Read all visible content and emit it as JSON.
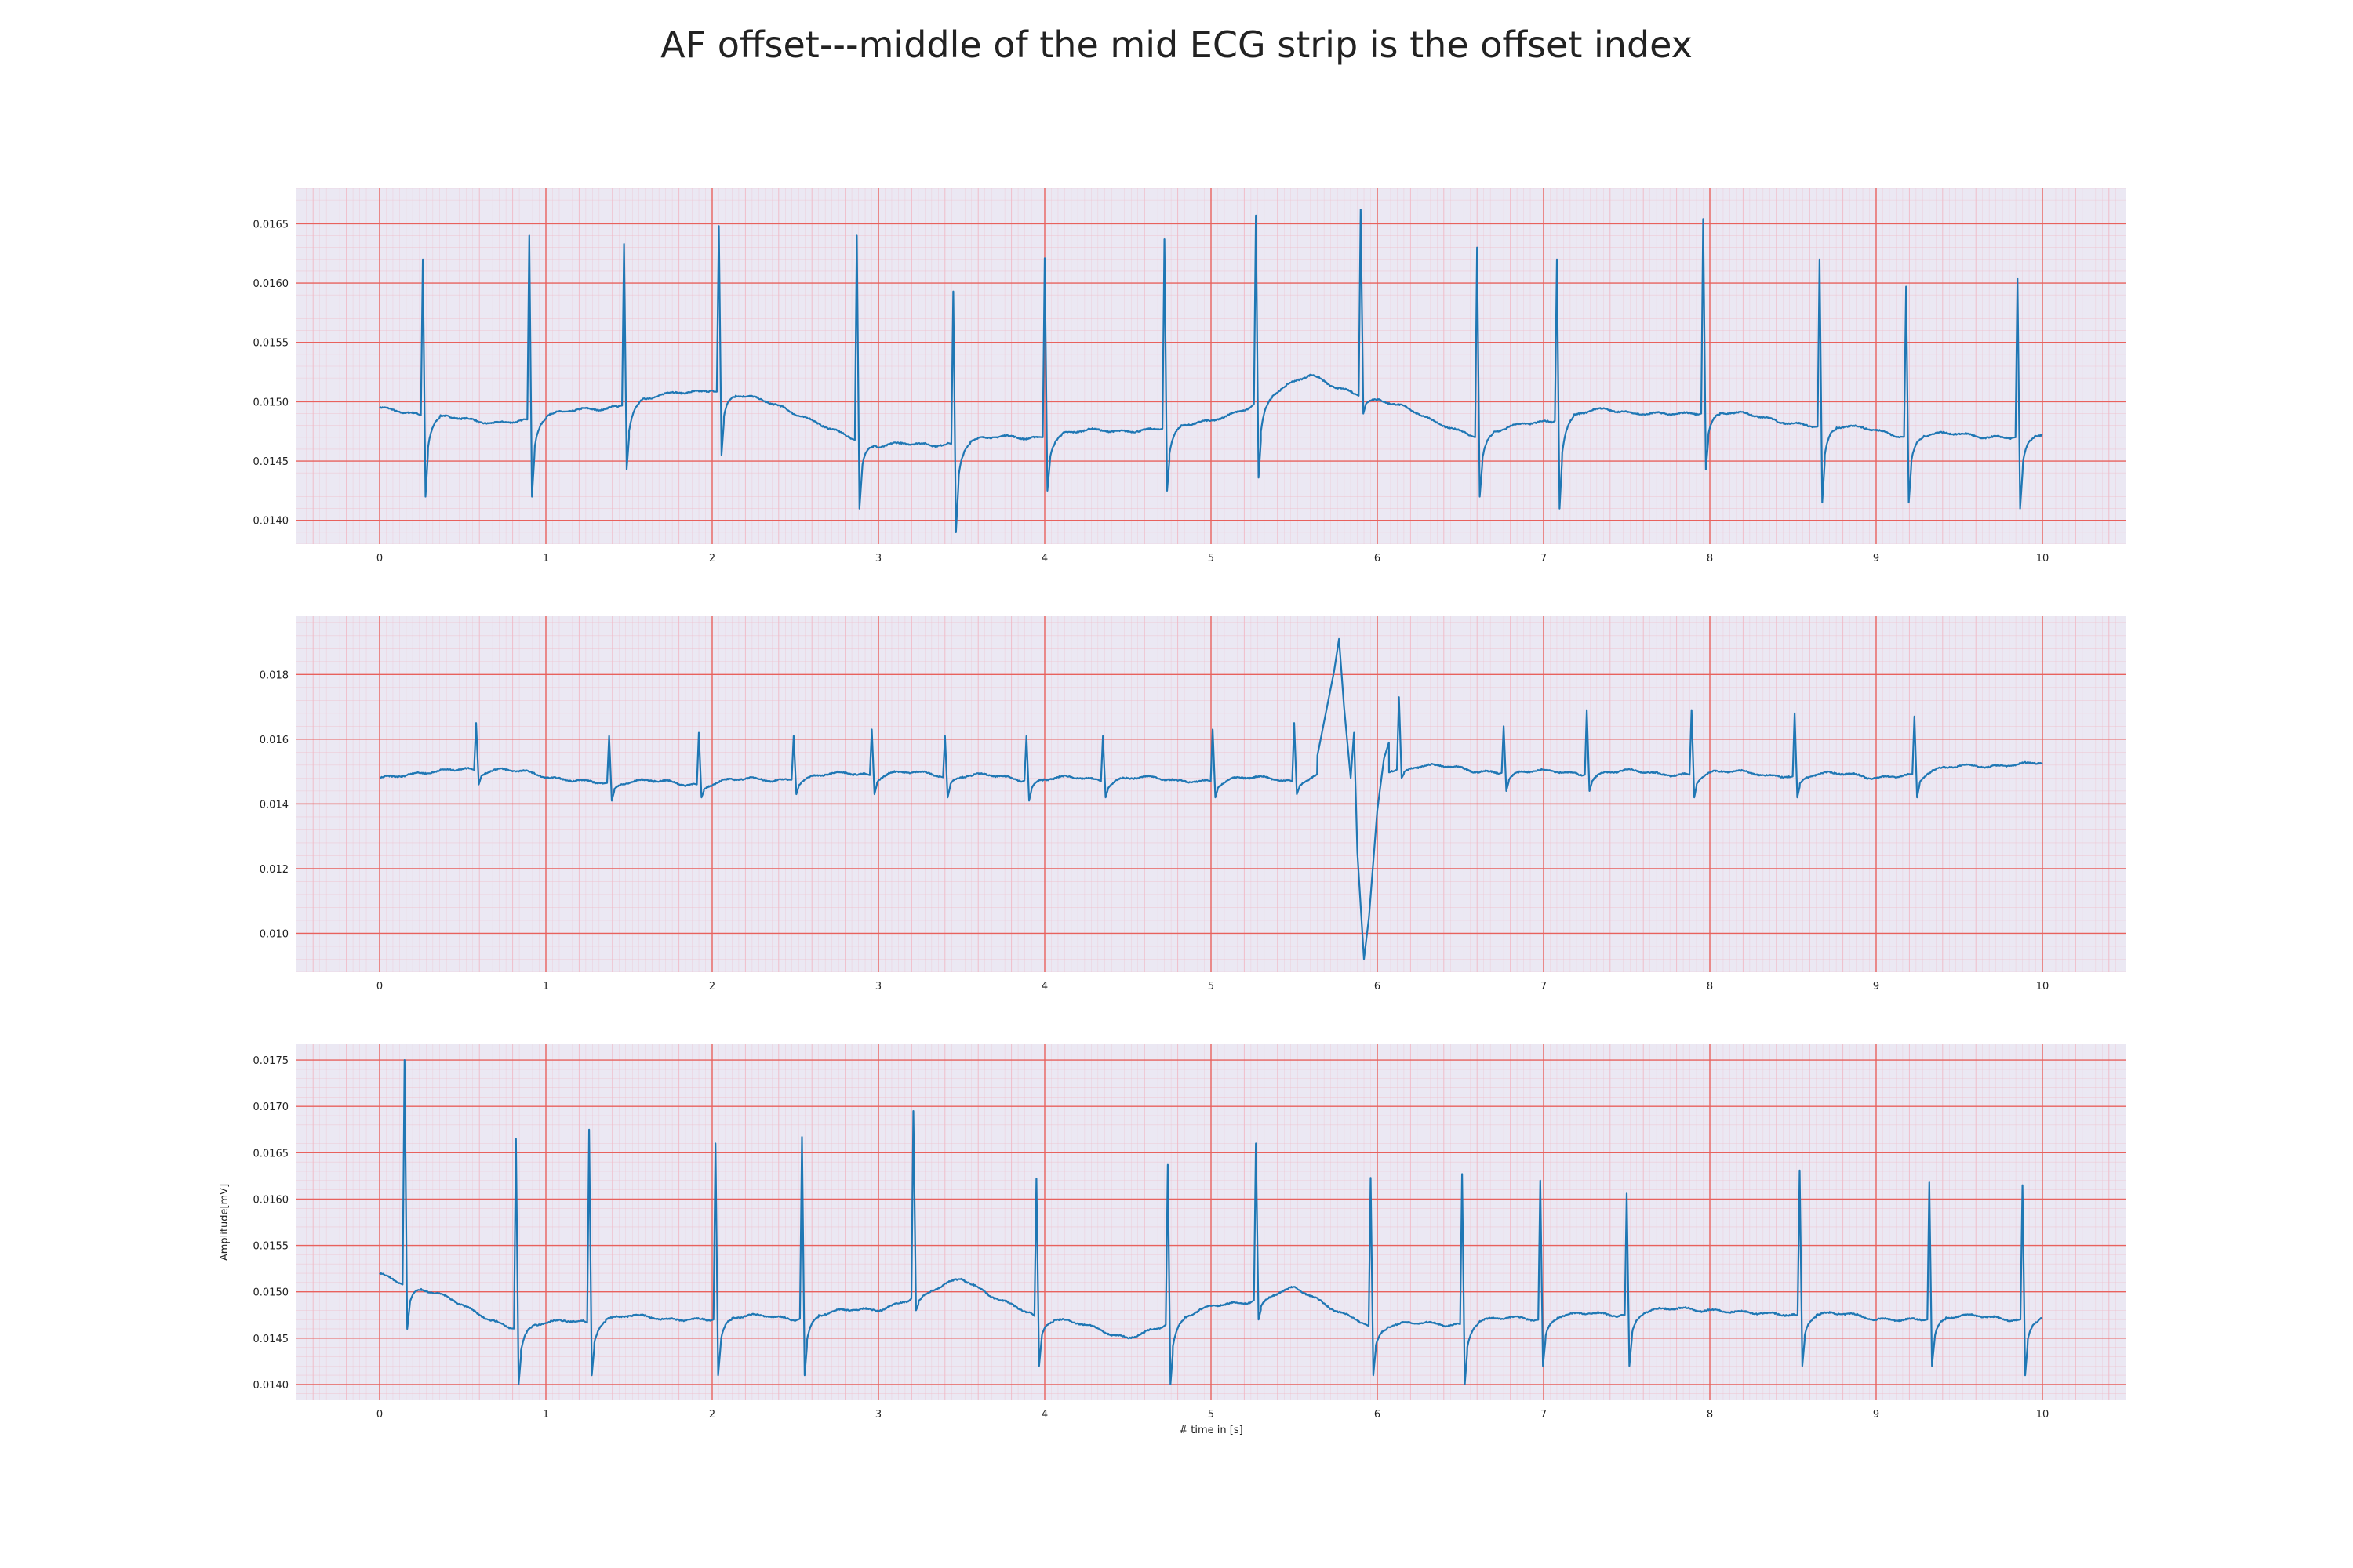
{
  "chart_data": [
    {
      "type": "line",
      "title": "AF offset---middle of the mid ECG strip is the offset index",
      "xlabel": "",
      "ylabel": "",
      "xlim": [
        -0.5,
        10.5
      ],
      "ylim": [
        0.0138,
        0.0168
      ],
      "xticks": [
        0,
        1,
        2,
        3,
        4,
        5,
        6,
        7,
        8,
        9,
        10
      ],
      "xtick_labels": [
        "0",
        "1",
        "2",
        "3",
        "4",
        "5",
        "6",
        "7",
        "8",
        "9",
        "10"
      ],
      "yticks": [
        0.014,
        0.0145,
        0.015,
        0.0155,
        0.016,
        0.0165
      ],
      "ytick_labels": [
        "0.0140",
        "0.0145",
        "0.0150",
        "0.0155",
        "0.0160",
        "0.0165"
      ],
      "grid": "ECG grid (major red lines, minor pink lines)",
      "series": [
        {
          "color": "#1f77b4",
          "baseline": [
            [
              0,
              0.01495
            ],
            [
              0.6,
              0.0148
            ],
            [
              1.2,
              0.0149
            ],
            [
              2.0,
              0.0151
            ],
            [
              2.5,
              0.0149
            ],
            [
              3.0,
              0.0146
            ],
            [
              4.0,
              0.0147
            ],
            [
              5.0,
              0.0148
            ],
            [
              5.6,
              0.0152
            ],
            [
              6.0,
              0.015
            ],
            [
              6.6,
              0.0147
            ],
            [
              7.3,
              0.0149
            ],
            [
              8.0,
              0.0149
            ],
            [
              8.6,
              0.0148
            ],
            [
              9.2,
              0.0147
            ],
            [
              10,
              0.0147
            ]
          ],
          "beats": [
            [
              0.26,
              0.0162,
              0.0142
            ],
            [
              0.9,
              0.0164,
              0.0142
            ],
            [
              1.47,
              0.01633,
              0.01443
            ],
            [
              2.04,
              0.01648,
              0.01455
            ],
            [
              2.87,
              0.0164,
              0.0141
            ],
            [
              3.45,
              0.01593,
              0.0139
            ],
            [
              4.0,
              0.01621,
              0.01425
            ],
            [
              4.72,
              0.01637,
              0.01425
            ],
            [
              5.27,
              0.01657,
              0.01436
            ],
            [
              5.9,
              0.01662,
              0.0149
            ],
            [
              6.6,
              0.0163,
              0.0142
            ],
            [
              7.08,
              0.0162,
              0.0141
            ],
            [
              7.96,
              0.01654,
              0.01443
            ],
            [
              8.66,
              0.0162,
              0.01415
            ],
            [
              9.18,
              0.01597,
              0.01415
            ],
            [
              9.85,
              0.01604,
              0.0141
            ]
          ]
        }
      ]
    },
    {
      "type": "line",
      "title": "",
      "xlabel": "",
      "ylabel": "",
      "xlim": [
        -0.5,
        10.5
      ],
      "ylim": [
        0.0088,
        0.0198
      ],
      "xticks": [
        0,
        1,
        2,
        3,
        4,
        5,
        6,
        7,
        8,
        9,
        10
      ],
      "xtick_labels": [
        "0",
        "1",
        "2",
        "3",
        "4",
        "5",
        "6",
        "7",
        "8",
        "9",
        "10"
      ],
      "yticks": [
        0.01,
        0.012,
        0.014,
        0.016,
        0.018
      ],
      "ytick_labels": [
        "0.010",
        "0.012",
        "0.014",
        "0.016",
        "0.018"
      ],
      "grid": "ECG grid (major red lines, minor pink lines)",
      "series": [
        {
          "color": "#1f77b4",
          "baseline": [
            [
              0,
              0.0148
            ],
            [
              0.5,
              0.0151
            ],
            [
              1.0,
              0.0148
            ],
            [
              1.5,
              0.0146
            ],
            [
              2.0,
              0.0146
            ],
            [
              3.0,
              0.0149
            ],
            [
              4.0,
              0.0147
            ],
            [
              5.0,
              0.0147
            ],
            [
              5.5,
              0.0147
            ],
            [
              6.2,
              0.0151
            ],
            [
              7.0,
              0.0149
            ],
            [
              8.0,
              0.0149
            ],
            [
              9.0,
              0.0148
            ],
            [
              10,
              0.0153
            ]
          ],
          "beats": [
            [
              0.58,
              0.0165,
              0.0146
            ],
            [
              1.38,
              0.0161,
              0.0141
            ],
            [
              1.92,
              0.0162,
              0.0142
            ],
            [
              2.49,
              0.0161,
              0.0143
            ],
            [
              2.96,
              0.0163,
              0.0143
            ],
            [
              3.4,
              0.0161,
              0.0142
            ],
            [
              3.89,
              0.0161,
              0.0141
            ],
            [
              4.35,
              0.0161,
              0.0142
            ],
            [
              5.01,
              0.0163,
              0.0142
            ],
            [
              5.5,
              0.0165,
              0.0143
            ],
            [
              6.13,
              0.0173,
              0.0148
            ],
            [
              6.76,
              0.0164,
              0.0144
            ],
            [
              7.26,
              0.0169,
              0.0144
            ],
            [
              7.89,
              0.0169,
              0.0142
            ],
            [
              8.51,
              0.0168,
              0.0142
            ],
            [
              9.23,
              0.0167,
              0.0142
            ]
          ],
          "events": [
            [
              5.64,
              0.0155
            ],
            [
              5.74,
              0.0181
            ],
            [
              5.77,
              0.0191
            ],
            [
              5.8,
              0.017
            ],
            [
              5.84,
              0.0148
            ],
            [
              5.86,
              0.0162
            ],
            [
              5.88,
              0.0125
            ],
            [
              5.92,
              0.0092
            ],
            [
              5.95,
              0.0105
            ],
            [
              6.0,
              0.0138
            ],
            [
              6.04,
              0.0154
            ],
            [
              6.07,
              0.0159
            ]
          ]
        }
      ]
    },
    {
      "type": "line",
      "title": "",
      "xlabel": "# time in [s]",
      "ylabel": "Amplitude[mV]",
      "xlim": [
        -0.5,
        10.5
      ],
      "ylim": [
        0.01383,
        0.01767
      ],
      "xticks": [
        0,
        1,
        2,
        3,
        4,
        5,
        6,
        7,
        8,
        9,
        10
      ],
      "xtick_labels": [
        "0",
        "1",
        "2",
        "3",
        "4",
        "5",
        "6",
        "7",
        "8",
        "9",
        "10"
      ],
      "yticks": [
        0.014,
        0.0145,
        0.015,
        0.0155,
        0.016,
        0.0165,
        0.017,
        0.0175
      ],
      "ytick_labels": [
        "0.0140",
        "0.0145",
        "0.0150",
        "0.0155",
        "0.0160",
        "0.0165",
        "0.0170",
        "0.0175"
      ],
      "grid": "ECG grid (major red lines, minor pink lines)",
      "series": [
        {
          "color": "#1f77b4",
          "baseline": [
            [
              0,
              0.0152
            ],
            [
              0.12,
              0.0151
            ],
            [
              0.4,
              0.0149
            ],
            [
              0.8,
              0.0146
            ],
            [
              1.5,
              0.0147
            ],
            [
              2.5,
              0.0147
            ],
            [
              3.0,
              0.0148
            ],
            [
              3.5,
              0.0151
            ],
            [
              4.0,
              0.0147
            ],
            [
              4.5,
              0.0145
            ],
            [
              5.0,
              0.0148
            ],
            [
              5.5,
              0.015
            ],
            [
              6.0,
              0.0146
            ],
            [
              7.0,
              0.0147
            ],
            [
              8.0,
              0.0148
            ],
            [
              9.0,
              0.0147
            ],
            [
              10,
              0.0147
            ]
          ],
          "beats": [
            [
              0.15,
              0.0175,
              0.0146
            ],
            [
              0.82,
              0.01665,
              0.014
            ],
            [
              1.26,
              0.01675,
              0.0141
            ],
            [
              2.02,
              0.0166,
              0.0141
            ],
            [
              2.54,
              0.01667,
              0.0141
            ],
            [
              3.21,
              0.01695,
              0.0148
            ],
            [
              3.95,
              0.01622,
              0.0142
            ],
            [
              4.74,
              0.01637,
              0.014
            ],
            [
              5.27,
              0.0166,
              0.0147
            ],
            [
              5.96,
              0.01623,
              0.0141
            ],
            [
              6.51,
              0.01627,
              0.014
            ],
            [
              6.98,
              0.0162,
              0.0142
            ],
            [
              7.5,
              0.01606,
              0.0142
            ],
            [
              8.54,
              0.01631,
              0.0142
            ],
            [
              9.32,
              0.01618,
              0.0142
            ],
            [
              9.88,
              0.01615,
              0.0141
            ]
          ]
        }
      ]
    }
  ],
  "colors": {
    "background": "#ebe8f3",
    "major_grid": "#e8615d",
    "minor_grid": "#f0b8c4",
    "line": "#1f77b4"
  }
}
